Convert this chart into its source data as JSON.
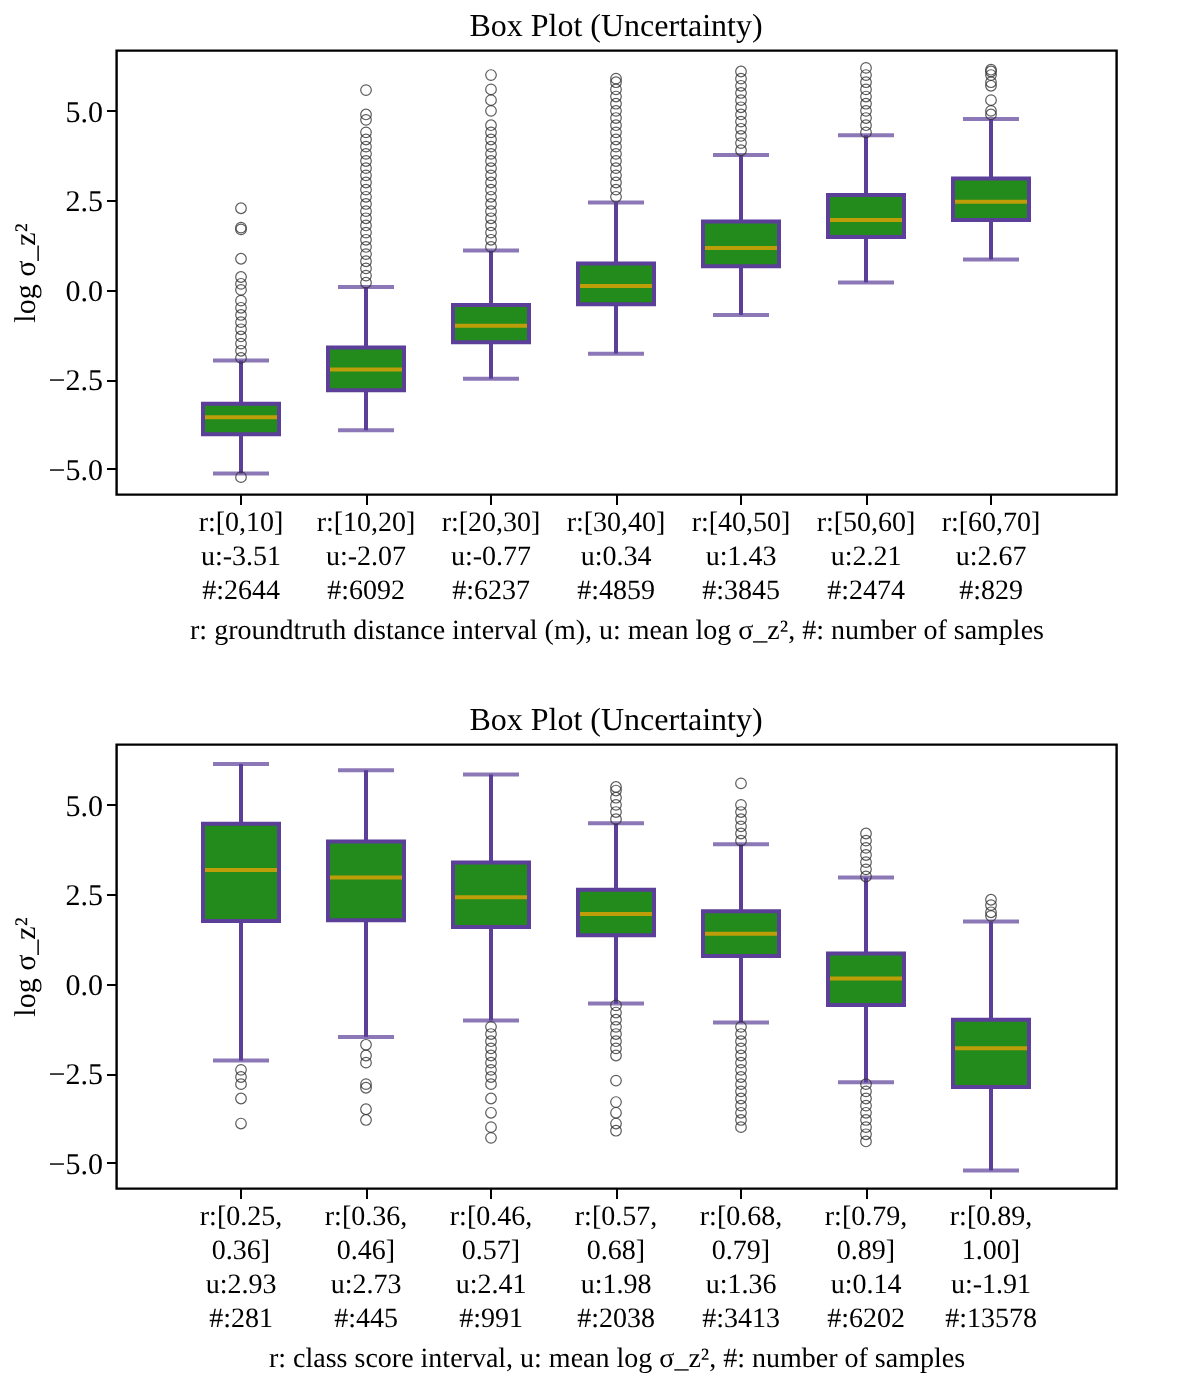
{
  "chart_data": [
    {
      "type": "box",
      "title": "Box Plot (Uncertainty)",
      "ylabel": "log σ_z²",
      "xlabel": "r: groundtruth distance interval (m), u: mean log σ_z², #: number of samples",
      "categories": [
        "r:[0,10]\nu:-3.51\n#:2644",
        "r:[10,20]\nu:-2.07\n#:6092",
        "r:[20,30]\nu:-0.77\n#:6237",
        "r:[30,40]\nu:0.34\n#:4859",
        "r:[40,50]\nu:1.43\n#:3845",
        "r:[50,60]\nu:2.21\n#:2474",
        "r:[60,70]\nu:2.67\n#:829"
      ],
      "ylim": [
        -5.7,
        6.7
      ],
      "yticks": [
        {
          "value": -5,
          "label": "−5.0"
        },
        {
          "value": -2.5,
          "label": "−2.5"
        },
        {
          "value": 0,
          "label": "0.0"
        },
        {
          "value": 2.5,
          "label": "2.5"
        },
        {
          "value": 5,
          "label": "5.0"
        }
      ],
      "grid": false,
      "series": [
        {
          "color": "#238b1c",
          "boxes": [
            {
              "low": -5.13,
              "q1": -4.03,
              "median": -3.56,
              "q3": -3.18,
              "high": -1.97,
              "outliers": [
                -5.23,
                -1.9,
                -1.7,
                -1.5,
                -1.3,
                -1.1,
                -0.9,
                -0.7,
                -0.5,
                -0.3,
                0.0,
                0.17,
                0.36,
                0.87,
                1.69,
                1.74,
                2.28
              ]
            },
            {
              "low": -3.92,
              "q1": -2.8,
              "median": -2.22,
              "q3": -1.61,
              "high": 0.08,
              "outliers": [
                0.2,
                0.4,
                0.6,
                0.8,
                1.0,
                1.2,
                1.4,
                1.6,
                1.8,
                2.0,
                2.2,
                2.4,
                2.6,
                2.8,
                3.0,
                3.2,
                3.4,
                3.6,
                3.8,
                4.0,
                4.2,
                4.4,
                4.75,
                4.9,
                5.58
              ]
            },
            {
              "low": -2.48,
              "q1": -1.46,
              "median": -1.0,
              "q3": -0.42,
              "high": 1.1,
              "outliers": [
                1.2,
                1.4,
                1.6,
                1.8,
                2.0,
                2.2,
                2.4,
                2.6,
                2.8,
                3.0,
                3.2,
                3.4,
                3.6,
                3.8,
                4.0,
                4.2,
                4.4,
                4.6,
                5.0,
                5.3,
                5.6,
                6.0
              ]
            },
            {
              "low": -1.78,
              "q1": -0.4,
              "median": 0.11,
              "q3": 0.74,
              "high": 2.44,
              "outliers": [
                2.6,
                2.8,
                3.0,
                3.2,
                3.4,
                3.6,
                3.8,
                4.0,
                4.2,
                4.4,
                4.6,
                4.8,
                5.0,
                5.2,
                5.4,
                5.6,
                5.8,
                5.9
              ]
            },
            {
              "low": -0.7,
              "q1": 0.66,
              "median": 1.17,
              "q3": 1.91,
              "high": 3.77,
              "outliers": [
                3.9,
                4.1,
                4.3,
                4.5,
                4.7,
                4.9,
                5.1,
                5.3,
                5.5,
                5.7,
                5.9,
                6.1
              ]
            },
            {
              "low": 0.21,
              "q1": 1.48,
              "median": 1.95,
              "q3": 2.65,
              "high": 4.32,
              "outliers": [
                4.4,
                4.6,
                4.8,
                5.0,
                5.2,
                5.4,
                5.6,
                5.8,
                6.0,
                6.2
              ]
            },
            {
              "low": 0.85,
              "q1": 1.95,
              "median": 2.46,
              "q3": 3.11,
              "high": 4.77,
              "outliers": [
                4.9,
                5.0,
                5.3,
                5.7,
                5.8,
                6.0,
                6.1,
                6.15
              ]
            }
          ]
        }
      ]
    },
    {
      "type": "box",
      "title": "Box Plot (Uncertainty)",
      "ylabel": "log σ_z²",
      "xlabel": "r: class score interval, u: mean log σ_z², #: number of samples",
      "categories": [
        "r:[0.25,\n0.36]\nu:2.93\n#:281",
        "r:[0.36,\n0.46]\nu:2.73\n#:445",
        "r:[0.46,\n0.57]\nu:2.41\n#:991",
        "r:[0.57,\n0.68]\nu:1.98\n#:2038",
        "r:[0.68,\n0.79]\nu:1.36\n#:3413",
        "r:[0.79,\n0.89]\nu:0.14\n#:6202",
        "r:[0.89,\n1.00]\nu:-1.91\n#:13578"
      ],
      "ylim": [
        -5.7,
        6.7
      ],
      "yticks": [
        {
          "value": -5,
          "label": "−5.0"
        },
        {
          "value": -2.5,
          "label": "−2.5"
        },
        {
          "value": 0,
          "label": "0.0"
        },
        {
          "value": 2.5,
          "label": "2.5"
        },
        {
          "value": 5,
          "label": "5.0"
        }
      ],
      "grid": false,
      "series": [
        {
          "color": "#238b1c",
          "boxes": [
            {
              "low": -2.14,
              "q1": 1.76,
              "median": 3.18,
              "q3": 4.47,
              "high": 6.14,
              "outliers": [
                -2.4,
                -2.6,
                -2.8,
                -3.2,
                -3.9
              ]
            },
            {
              "low": -1.48,
              "q1": 1.78,
              "median": 2.97,
              "q3": 3.98,
              "high": 5.97,
              "outliers": [
                -1.7,
                -2.0,
                -2.2,
                -2.8,
                -2.9,
                -3.5,
                -3.8
              ]
            },
            {
              "low": -1.02,
              "q1": 1.59,
              "median": 2.42,
              "q3": 3.39,
              "high": 5.85,
              "outliers": [
                -1.2,
                -1.4,
                -1.6,
                -1.8,
                -2.0,
                -2.2,
                -2.4,
                -2.6,
                -2.8,
                -3.2,
                -3.6,
                -4.0,
                -4.3
              ]
            },
            {
              "low": -0.55,
              "q1": 1.36,
              "median": 1.95,
              "q3": 2.63,
              "high": 4.49,
              "outliers": [
                4.6,
                4.8,
                5.0,
                5.2,
                5.4,
                5.5,
                -0.6,
                -0.8,
                -1.0,
                -1.2,
                -1.4,
                -1.6,
                -1.8,
                -2.0,
                -2.7,
                -3.3,
                -3.6,
                -3.9,
                -4.1
              ]
            },
            {
              "low": -1.08,
              "q1": 0.78,
              "median": 1.4,
              "q3": 2.03,
              "high": 3.9,
              "outliers": [
                4.0,
                4.2,
                4.4,
                4.6,
                4.8,
                5.0,
                5.6,
                -1.2,
                -1.4,
                -1.6,
                -1.8,
                -2.0,
                -2.2,
                -2.4,
                -2.6,
                -2.8,
                -3.0,
                -3.2,
                -3.4,
                -3.6,
                -3.8,
                -4.0
              ]
            },
            {
              "low": -2.75,
              "q1": -0.59,
              "median": 0.15,
              "q3": 0.85,
              "high": 2.97,
              "outliers": [
                3.0,
                3.2,
                3.4,
                3.6,
                3.8,
                4.0,
                4.2,
                -2.8,
                -3.0,
                -3.2,
                -3.4,
                -3.6,
                -3.8,
                -4.0,
                -4.2,
                -4.4
              ]
            },
            {
              "low": -5.21,
              "q1": -2.88,
              "median": -1.8,
              "q3": -1.0,
              "high": 1.74,
              "outliers": [
                1.9,
                2.0,
                2.2,
                2.35
              ]
            }
          ]
        }
      ]
    }
  ]
}
